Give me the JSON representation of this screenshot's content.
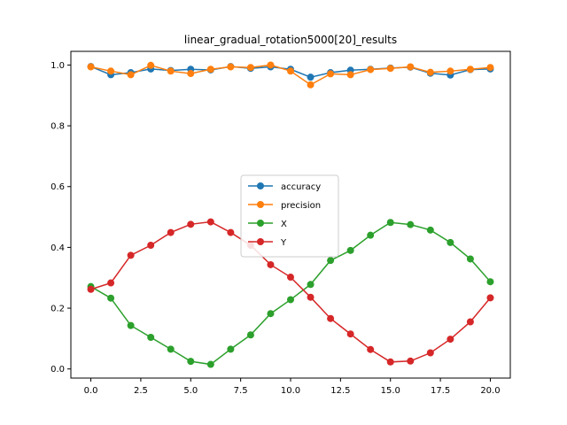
{
  "chart_data": {
    "type": "line",
    "title": "linear_gradual_rotation5000[20]_results",
    "xlabel": "",
    "ylabel": "",
    "xlim": [
      -1.0,
      21.0
    ],
    "ylim": [
      -0.03,
      1.045
    ],
    "xticks": [
      0.0,
      2.5,
      5.0,
      7.5,
      10.0,
      12.5,
      15.0,
      17.5,
      20.0
    ],
    "xtick_labels": [
      "0.0",
      "2.5",
      "5.0",
      "7.5",
      "10.0",
      "12.5",
      "15.0",
      "17.5",
      "20.0"
    ],
    "yticks": [
      0.0,
      0.2,
      0.4,
      0.6,
      0.8,
      1.0
    ],
    "ytick_labels": [
      "0.0",
      "0.2",
      "0.4",
      "0.6",
      "0.8",
      "1.0"
    ],
    "grid": false,
    "legend": "center",
    "x": [
      0,
      1,
      2,
      3,
      4,
      5,
      6,
      7,
      8,
      9,
      10,
      11,
      12,
      13,
      14,
      15,
      16,
      17,
      18,
      19,
      20
    ],
    "series": [
      {
        "name": "accuracy",
        "color": "#1f77b4",
        "values": [
          0.995,
          0.968,
          0.975,
          0.987,
          0.982,
          0.986,
          0.984,
          0.995,
          0.989,
          0.994,
          0.986,
          0.96,
          0.975,
          0.983,
          0.986,
          0.99,
          0.993,
          0.973,
          0.967,
          0.985,
          0.987
        ]
      },
      {
        "name": "precision",
        "color": "#ff7f0e",
        "values": [
          0.994,
          0.98,
          0.968,
          0.999,
          0.98,
          0.972,
          0.986,
          0.994,
          0.992,
          1.0,
          0.98,
          0.935,
          0.971,
          0.968,
          0.985,
          0.989,
          0.994,
          0.976,
          0.98,
          0.986,
          0.992
        ]
      },
      {
        "name": "X",
        "color": "#2ca02c",
        "values": [
          0.271,
          0.233,
          0.143,
          0.104,
          0.065,
          0.025,
          0.015,
          0.065,
          0.112,
          0.182,
          0.228,
          0.278,
          0.357,
          0.39,
          0.44,
          0.482,
          0.475,
          0.457,
          0.416,
          0.362,
          0.287
        ]
      },
      {
        "name": "Y",
        "color": "#d62728",
        "values": [
          0.262,
          0.283,
          0.374,
          0.407,
          0.449,
          0.476,
          0.484,
          0.449,
          0.407,
          0.343,
          0.302,
          0.236,
          0.166,
          0.115,
          0.064,
          0.023,
          0.026,
          0.053,
          0.098,
          0.155,
          0.234
        ]
      }
    ]
  }
}
